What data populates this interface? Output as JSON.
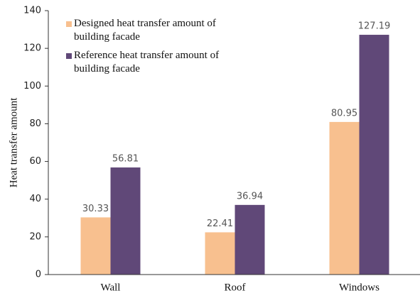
{
  "chart_data": {
    "type": "bar",
    "y_label": "Heat transfer amount",
    "categories": [
      "Wall",
      "Roof",
      "Windows"
    ],
    "series": [
      {
        "name": "Designed heat transfer amount of building facade",
        "color": "#f8c08f",
        "values": [
          30.33,
          22.41,
          80.95
        ]
      },
      {
        "name": "Reference heat transfer amount of building facade",
        "color": "#604878",
        "values": [
          56.81,
          36.94,
          127.19
        ]
      }
    ],
    "ylim": [
      0,
      140
    ],
    "yticks": [
      0,
      20,
      40,
      60,
      80,
      100,
      120,
      140
    ],
    "grid": false,
    "legend": "upper left"
  }
}
